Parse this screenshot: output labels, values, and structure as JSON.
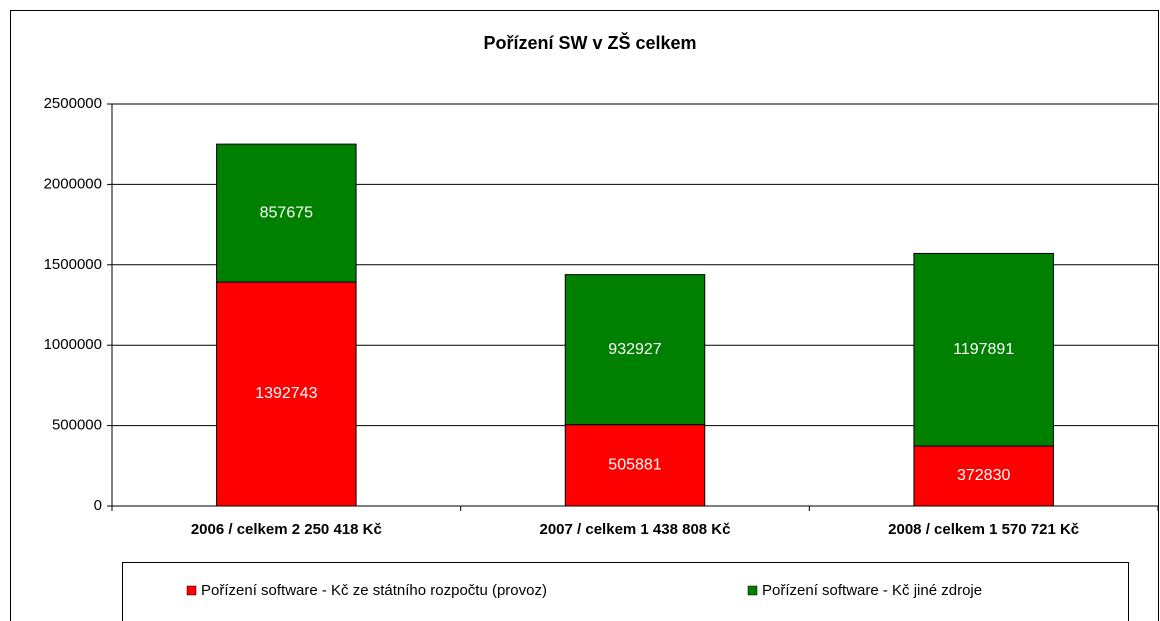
{
  "chart_data": {
    "type": "stacked_bar",
    "title": "Pořízení SW v ZŠ celkem",
    "categories": [
      "2006 / celkem 2 250 418 Kč",
      "2007 / celkem 1 438 808 Kč",
      "2008 / celkem 1 570 721 Kč"
    ],
    "series": [
      {
        "name": "Pořízení software - Kč ze státního rozpočtu (provoz)",
        "color": "#ff0000",
        "values": [
          1392743,
          505881,
          372830
        ]
      },
      {
        "name": "Pořízení software - Kč jiné zdroje",
        "color": "#008000",
        "values": [
          857675,
          932927,
          1197891
        ]
      }
    ],
    "ylim": [
      0,
      2500000
    ],
    "yticks": [
      0,
      500000,
      1000000,
      1500000,
      2000000,
      2500000
    ],
    "grid": true,
    "legend": "bottom"
  }
}
